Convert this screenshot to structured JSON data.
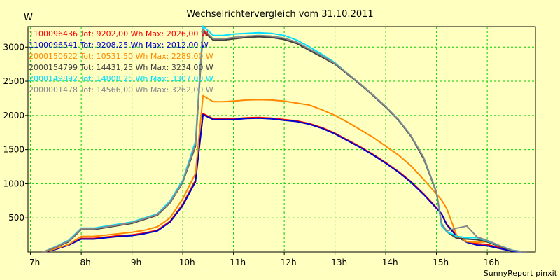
{
  "chart_data": {
    "type": "line",
    "title": "Wechselrichtervergleich vom 31.10.2011",
    "ylabel": "W",
    "xlabel": "",
    "xlim": [
      6.95,
      16.95
    ],
    "ylim": [
      0,
      3300
    ],
    "x_ticks": [
      7,
      8,
      9,
      10,
      11,
      12,
      13,
      14,
      15,
      16
    ],
    "x_tick_labels": [
      "7h",
      "8h",
      "9h",
      "10h",
      "11h",
      "12h",
      "13h",
      "14h",
      "15h",
      "16h"
    ],
    "y_ticks": [
      500,
      1000,
      1500,
      2000,
      2500,
      3000
    ],
    "y_tick_labels": [
      "500",
      "1000",
      "1500",
      "2000",
      "2500",
      "3000"
    ],
    "grid": true,
    "legend_position": "top-left",
    "footer": "SunnyReport pinxit",
    "colors": {
      "background": "#ffffc0",
      "grid": "#00d000"
    },
    "series": [
      {
        "name": "1100096436 Tot: 9202,00 Wh Max: 2026,00 W",
        "color": "#ff0000",
        "x": [
          7.25,
          7.5,
          7.75,
          8.0,
          8.25,
          8.5,
          8.75,
          9.0,
          9.25,
          9.5,
          9.75,
          10.0,
          10.25,
          10.4,
          10.6,
          10.8,
          11.0,
          11.25,
          11.5,
          11.75,
          12.0,
          12.25,
          12.5,
          12.75,
          13.0,
          13.25,
          13.5,
          13.75,
          14.0,
          14.25,
          14.5,
          14.75,
          15.0,
          15.1,
          15.2,
          15.4,
          15.6,
          15.8,
          16.0,
          16.25,
          16.5,
          16.75
        ],
        "values": [
          0,
          40,
          100,
          200,
          200,
          220,
          240,
          250,
          280,
          320,
          450,
          700,
          1050,
          2026,
          1950,
          1950,
          1950,
          1965,
          1970,
          1960,
          1940,
          1920,
          1880,
          1820,
          1740,
          1640,
          1540,
          1430,
          1310,
          1180,
          1030,
          850,
          650,
          560,
          410,
          240,
          150,
          120,
          110,
          60,
          20,
          0
        ]
      },
      {
        "name": "1100096541 Tot: 9208,25 Wh Max: 2012,00 W",
        "color": "#0000cc",
        "x": [
          7.25,
          7.5,
          7.75,
          8.0,
          8.25,
          8.5,
          8.75,
          9.0,
          9.25,
          9.5,
          9.75,
          10.0,
          10.25,
          10.4,
          10.6,
          10.8,
          11.0,
          11.25,
          11.5,
          11.75,
          12.0,
          12.25,
          12.5,
          12.75,
          13.0,
          13.25,
          13.5,
          13.75,
          14.0,
          14.25,
          14.5,
          14.75,
          15.0,
          15.1,
          15.2,
          15.4,
          15.6,
          15.8,
          16.0,
          16.25,
          16.5,
          16.75
        ],
        "values": [
          0,
          40,
          100,
          190,
          190,
          210,
          230,
          240,
          270,
          310,
          440,
          680,
          1030,
          2012,
          1940,
          1940,
          1940,
          1955,
          1960,
          1950,
          1930,
          1910,
          1870,
          1810,
          1730,
          1630,
          1530,
          1420,
          1300,
          1170,
          1020,
          840,
          640,
          560,
          400,
          230,
          140,
          100,
          90,
          50,
          10,
          0
        ]
      },
      {
        "name": "2000150622 Tot: 10531,50 Wh Max: 2289,00 W",
        "color": "#ff8800",
        "x": [
          7.25,
          7.5,
          7.75,
          8.0,
          8.25,
          8.5,
          8.75,
          9.0,
          9.25,
          9.5,
          9.75,
          10.0,
          10.25,
          10.4,
          10.6,
          10.8,
          11.0,
          11.25,
          11.5,
          11.75,
          12.0,
          12.25,
          12.5,
          12.75,
          13.0,
          13.25,
          13.5,
          13.75,
          14.0,
          14.25,
          14.5,
          14.75,
          15.0,
          15.1,
          15.2,
          15.4,
          15.6,
          15.8,
          16.0,
          16.25,
          16.5,
          16.75
        ],
        "values": [
          0,
          50,
          110,
          230,
          230,
          250,
          270,
          290,
          320,
          370,
          500,
          780,
          1150,
          2289,
          2200,
          2200,
          2210,
          2225,
          2230,
          2225,
          2210,
          2180,
          2150,
          2080,
          2000,
          1900,
          1790,
          1680,
          1550,
          1420,
          1260,
          1060,
          850,
          760,
          640,
          240,
          150,
          140,
          150,
          80,
          25,
          0
        ]
      },
      {
        "name": "2000154799 Tot: 14431,25 Wh Max: 3234,00 W",
        "color": "#404040",
        "x": [
          7.25,
          7.5,
          7.75,
          8.0,
          8.25,
          8.5,
          8.75,
          9.0,
          9.25,
          9.5,
          9.75,
          10.0,
          10.25,
          10.4,
          10.6,
          10.8,
          11.0,
          11.25,
          11.5,
          11.75,
          12.0,
          12.25,
          12.5,
          12.75,
          13.0,
          13.25,
          13.5,
          13.75,
          14.0,
          14.25,
          14.5,
          14.75,
          15.0,
          15.1,
          15.2,
          15.4,
          15.6,
          15.8,
          16.0,
          16.25,
          16.5,
          16.75
        ],
        "values": [
          0,
          70,
          150,
          330,
          330,
          360,
          390,
          420,
          480,
          540,
          720,
          1020,
          1550,
          3234,
          3100,
          3100,
          3120,
          3140,
          3150,
          3140,
          3110,
          3050,
          2950,
          2850,
          2750,
          2600,
          2450,
          2290,
          2120,
          1930,
          1690,
          1360,
          870,
          400,
          300,
          200,
          190,
          180,
          150,
          80,
          20,
          0
        ]
      },
      {
        "name": "2000149892 Tot: 14808,25 Wh Max: 3307,00 W",
        "color": "#00e0ff",
        "x": [
          7.25,
          7.5,
          7.75,
          8.0,
          8.25,
          8.5,
          8.75,
          9.0,
          9.25,
          9.5,
          9.75,
          10.0,
          10.25,
          10.4,
          10.6,
          10.8,
          11.0,
          11.25,
          11.5,
          11.75,
          12.0,
          12.25,
          12.5,
          12.75,
          13.0,
          13.25,
          13.5,
          13.75,
          14.0,
          14.25,
          14.5,
          14.75,
          15.0,
          15.1,
          15.2,
          15.4,
          15.6,
          15.8,
          16.0,
          16.25,
          16.5,
          16.75
        ],
        "values": [
          0,
          80,
          170,
          350,
          350,
          380,
          410,
          440,
          500,
          560,
          750,
          1050,
          1620,
          3307,
          3170,
          3170,
          3190,
          3200,
          3210,
          3200,
          3170,
          3100,
          3000,
          2890,
          2770,
          2610,
          2460,
          2300,
          2130,
          1940,
          1700,
          1380,
          880,
          380,
          300,
          230,
          210,
          210,
          160,
          90,
          25,
          0
        ]
      },
      {
        "name": "2000001478 Tot: 14566,00 Wh Max: 3262,00 W",
        "color": "#888888",
        "x": [
          7.25,
          7.5,
          7.75,
          8.0,
          8.25,
          8.5,
          8.75,
          9.0,
          9.25,
          9.5,
          9.75,
          10.0,
          10.25,
          10.4,
          10.6,
          10.8,
          11.0,
          11.25,
          11.5,
          11.75,
          12.0,
          12.25,
          12.5,
          12.75,
          13.0,
          13.25,
          13.5,
          13.75,
          14.0,
          14.25,
          14.5,
          14.75,
          15.0,
          15.1,
          15.2,
          15.4,
          15.6,
          15.8,
          16.0,
          16.25,
          16.5,
          16.75
        ],
        "values": [
          0,
          75,
          160,
          340,
          340,
          370,
          400,
          430,
          490,
          550,
          730,
          1030,
          1580,
          3262,
          3120,
          3120,
          3140,
          3160,
          3170,
          3160,
          3130,
          3070,
          2970,
          2870,
          2760,
          2610,
          2460,
          2300,
          2130,
          1940,
          1700,
          1380,
          880,
          420,
          310,
          350,
          380,
          220,
          170,
          90,
          20,
          0
        ]
      }
    ]
  }
}
